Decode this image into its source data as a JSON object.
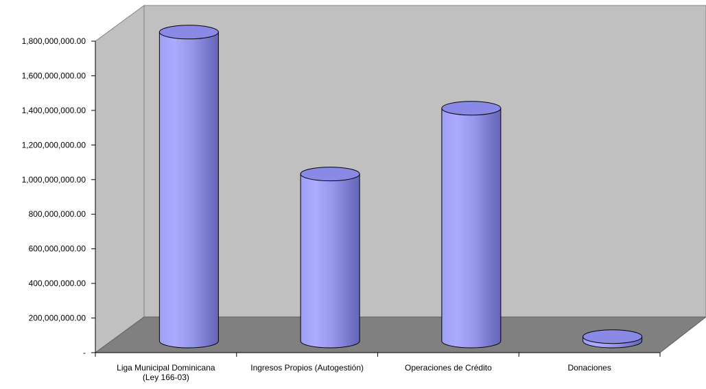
{
  "chart_data": {
    "type": "bar",
    "style": "3d-cylinder",
    "categories": [
      [
        "Liga Municipal Dominicana",
        "(Ley 166-03)"
      ],
      [
        "Ingresos Propios (Autogestión)"
      ],
      [
        "Operaciones de Crédito"
      ],
      [
        "Donaciones"
      ]
    ],
    "values": [
      1785000000,
      965000000,
      1345000000,
      25000000
    ],
    "y_ticks": [
      "-",
      "200,000,000.00",
      "400,000,000.00",
      "600,000,000.00",
      "800,000,000.00",
      "1,000,000,000.00",
      "1,200,000,000.00",
      "1,400,000,000.00",
      "1,600,000,000.00",
      "1,800,000,000.00"
    ],
    "ylim": [
      0,
      1800000000
    ],
    "title": "",
    "xlabel": "",
    "ylabel": "",
    "legend": "none",
    "grid": false
  },
  "colors": {
    "back_wall": "#c0c0c0",
    "side_wall": "#c0c0c0",
    "floor": "#808080",
    "bar_light": "#aaaaff",
    "bar_mid": "#9999ee",
    "bar_dark": "#6b6bbf",
    "bar_top": "#8a8ae6",
    "outline": "#000000"
  }
}
